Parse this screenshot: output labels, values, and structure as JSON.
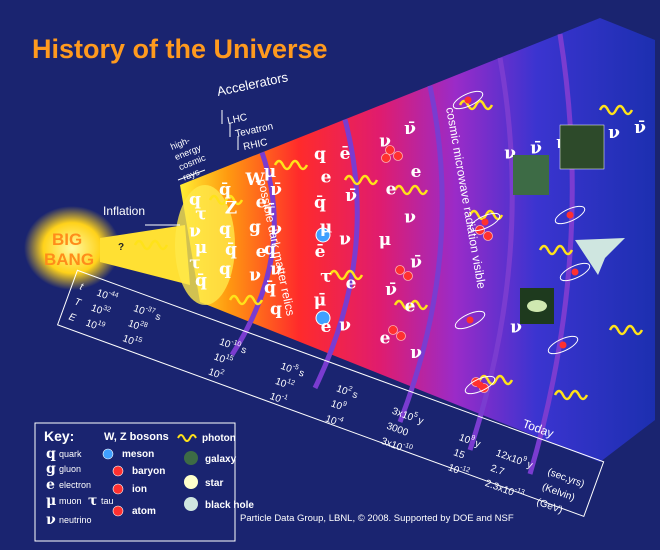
{
  "title": "History of the Universe",
  "big_bang": [
    "BIG",
    "BANG"
  ],
  "big_bang_question": "?",
  "labels": {
    "inflation": "Inflation",
    "cosmic_rays": [
      "high-",
      "energy",
      "cosmic",
      "rays"
    ],
    "accelerators": "Accelerators",
    "colliders": [
      "LHC",
      "Tevatron",
      "RHIC"
    ],
    "dark_matter": "possible dark matter relics",
    "cmb": "cosmic microwave radiation visible",
    "today": "Today"
  },
  "timeline": {
    "row_labels": [
      "t",
      "T",
      "E"
    ],
    "units": [
      "(sec,yrs)",
      "(Kelvin)",
      "(GeV)"
    ],
    "epochs": [
      [
        {
          "base": "10",
          "exp": "-44"
        },
        {
          "base": "10",
          "exp": "32"
        },
        {
          "base": "10",
          "exp": "19"
        }
      ],
      [
        {
          "base": "10",
          "exp": "-37",
          "unit": "s"
        },
        {
          "base": "10",
          "exp": "28"
        },
        {
          "base": "10",
          "exp": "15"
        }
      ],
      [
        {
          "base": "10",
          "exp": "-10",
          "unit": "s"
        },
        {
          "base": "10",
          "exp": "15"
        },
        {
          "base": "10",
          "exp": "2"
        }
      ],
      [
        {
          "base": "10",
          "exp": "-5",
          "unit": "s"
        },
        {
          "base": "10",
          "exp": "12"
        },
        {
          "base": "10",
          "exp": "-1"
        }
      ],
      [
        {
          "base": "10",
          "exp": "2",
          "unit": "s"
        },
        {
          "base": "10",
          "exp": "9"
        },
        {
          "base": "10",
          "exp": "-4"
        }
      ],
      [
        {
          "base": "3x10",
          "exp": "5",
          "unit": "y"
        },
        {
          "base": "3000"
        },
        {
          "base": "3x10",
          "exp": "-10"
        }
      ],
      [
        {
          "base": "10",
          "exp": "9",
          "unit": "y"
        },
        {
          "base": "15"
        },
        {
          "base": "10",
          "exp": "-12"
        }
      ],
      [
        {
          "base": "12x10",
          "exp": "9",
          "unit": "y"
        },
        {
          "base": "2.7"
        },
        {
          "base": "2.3x10",
          "exp": "-13"
        }
      ]
    ]
  },
  "particles": {
    "quark_era": [
      "q",
      "q̄",
      "W",
      "τ",
      "Z",
      "e",
      "ν",
      "q",
      "g",
      "μ",
      "q̄",
      "e",
      "τ",
      "q",
      "ν",
      "q̄"
    ],
    "relic_era": [
      "μ",
      "q",
      "ν̄",
      "e",
      "τ̄",
      "q̄",
      "ν",
      "μ",
      "q",
      "ē",
      "ν",
      "τ",
      "q̄",
      "μ̄",
      "q",
      "e"
    ],
    "hadron_era": [
      "ē",
      "ν",
      "ν̄",
      "e",
      "ν",
      "μ",
      "e",
      "ν̄",
      "ν",
      "e"
    ],
    "nucleus_era": [
      "ν̄",
      "e",
      "ν",
      "ν̄",
      "e",
      "ν"
    ],
    "atom_era": [
      "ν",
      "ν̄",
      "ν",
      "ν̄",
      "ν",
      "ν̄",
      "ν"
    ]
  },
  "key": {
    "title": "Key:",
    "bosons": "W, Z bosons",
    "fermions": [
      {
        "symbol": "q",
        "label": "quark"
      },
      {
        "symbol": "g",
        "label": "gluon"
      },
      {
        "symbol": "e",
        "label": "electron"
      },
      {
        "symbol": "μ",
        "label": "muon"
      },
      {
        "symbol": "τ",
        "label": "tau"
      },
      {
        "symbol": "ν",
        "label": "neutrino"
      }
    ],
    "composites": [
      "meson",
      "baryon",
      "ion",
      "atom"
    ],
    "others": [
      "photon",
      "galaxy",
      "star",
      "black hole"
    ]
  },
  "footer": "Particle Data Group, LBNL, © 2008.   Supported by DOE and NSF"
}
